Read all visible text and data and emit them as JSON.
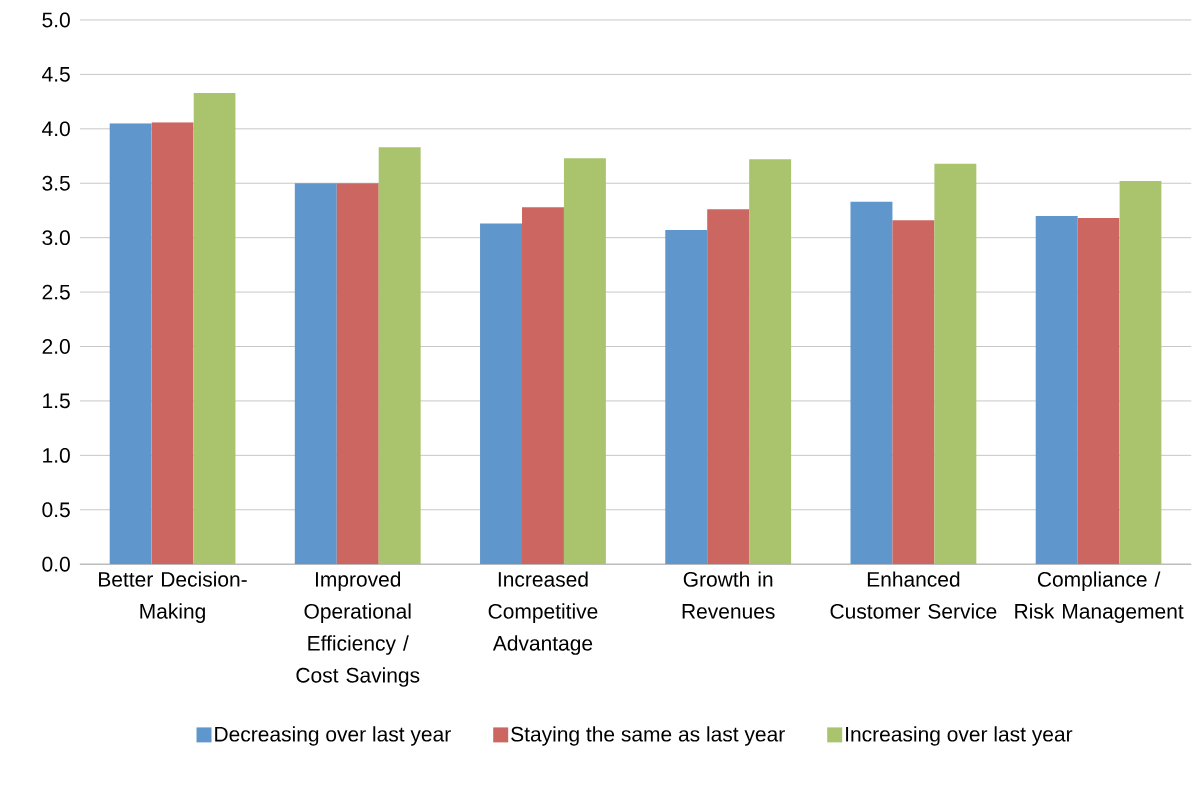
{
  "chart_data": {
    "type": "bar",
    "categories": [
      "Better Decision-Making",
      "Improved Operational Efficiency / Cost Savings",
      "Increased Competitive Advantage",
      "Growth in Revenues",
      "Enhanced Customer Service",
      "Compliance / Risk Management"
    ],
    "series": [
      {
        "name": "Decreasing over last year",
        "color": "#5f96cb",
        "values": [
          4.05,
          3.5,
          3.13,
          3.07,
          3.33,
          3.2
        ]
      },
      {
        "name": "Staying the same as last year",
        "color": "#cc6660",
        "values": [
          4.06,
          3.5,
          3.28,
          3.26,
          3.16,
          3.18
        ]
      },
      {
        "name": "Increasing over last year",
        "color": "#a9c46d",
        "values": [
          4.33,
          3.83,
          3.73,
          3.72,
          3.68,
          3.52
        ]
      }
    ],
    "ylim": [
      0,
      5
    ],
    "yticks": [
      {
        "value": 0,
        "label": "0.0"
      },
      {
        "value": 0.5,
        "label": "0.5"
      },
      {
        "value": 1,
        "label": "1.0"
      },
      {
        "value": 1.5,
        "label": "1.5"
      },
      {
        "value": 2,
        "label": "2.0"
      },
      {
        "value": 2.5,
        "label": "2.5"
      },
      {
        "value": 3,
        "label": "3.0"
      },
      {
        "value": 3.5,
        "label": "3.5"
      },
      {
        "value": 4,
        "label": "4.0"
      },
      {
        "value": 4.5,
        "label": "4.5"
      },
      {
        "value": 5,
        "label": "5.0"
      }
    ],
    "grid": "y",
    "legend": "bottom"
  }
}
